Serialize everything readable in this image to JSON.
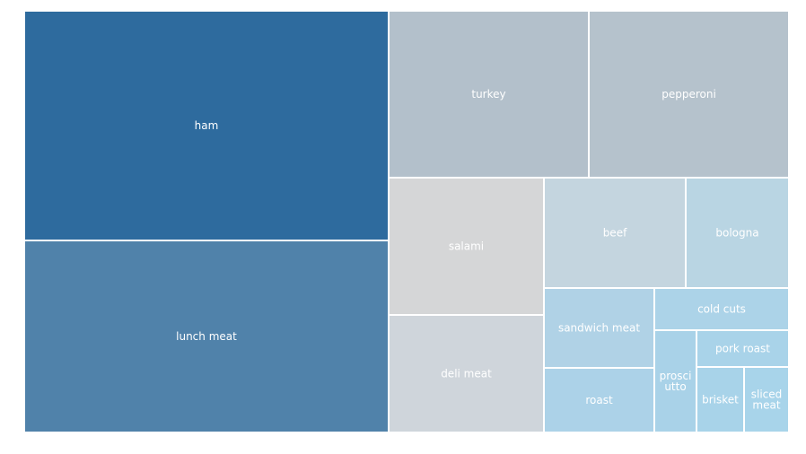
{
  "chart_data": {
    "type": "treemap",
    "items": [
      {
        "name": "ham",
        "label_lines": [
          "ham"
        ],
        "color": "#2e6b9e"
      },
      {
        "name": "lunch meat",
        "label_lines": [
          "lunch meat"
        ],
        "color": "#5082aa"
      },
      {
        "name": "turkey",
        "label_lines": [
          "turkey"
        ],
        "color": "#b3c0cb"
      },
      {
        "name": "pepperoni",
        "label_lines": [
          "pepperoni"
        ],
        "color": "#b5c2cc"
      },
      {
        "name": "salami",
        "label_lines": [
          "salami"
        ],
        "color": "#d5d6d7"
      },
      {
        "name": "deli meat",
        "label_lines": [
          "deli meat"
        ],
        "color": "#cfd5db"
      },
      {
        "name": "beef",
        "label_lines": [
          "beef"
        ],
        "color": "#c4d5df"
      },
      {
        "name": "bologna",
        "label_lines": [
          "bologna"
        ],
        "color": "#b9d5e3"
      },
      {
        "name": "sandwich meat",
        "label_lines": [
          "sandwich meat"
        ],
        "color": "#b0d2e6"
      },
      {
        "name": "roast",
        "label_lines": [
          "roast"
        ],
        "color": "#acd2e8"
      },
      {
        "name": "cold cuts",
        "label_lines": [
          "cold cuts"
        ],
        "color": "#acd3e8"
      },
      {
        "name": "prosciutto",
        "label_lines": [
          "prosci",
          "utto"
        ],
        "color": "#a9d2e8"
      },
      {
        "name": "pork roast",
        "label_lines": [
          "pork roast"
        ],
        "color": "#a9d3e9"
      },
      {
        "name": "brisket",
        "label_lines": [
          "brisket"
        ],
        "color": "#a8d3e9"
      },
      {
        "name": "sliced meat",
        "label_lines": [
          "sliced",
          "meat"
        ],
        "color": "#a8d4ea"
      }
    ]
  }
}
